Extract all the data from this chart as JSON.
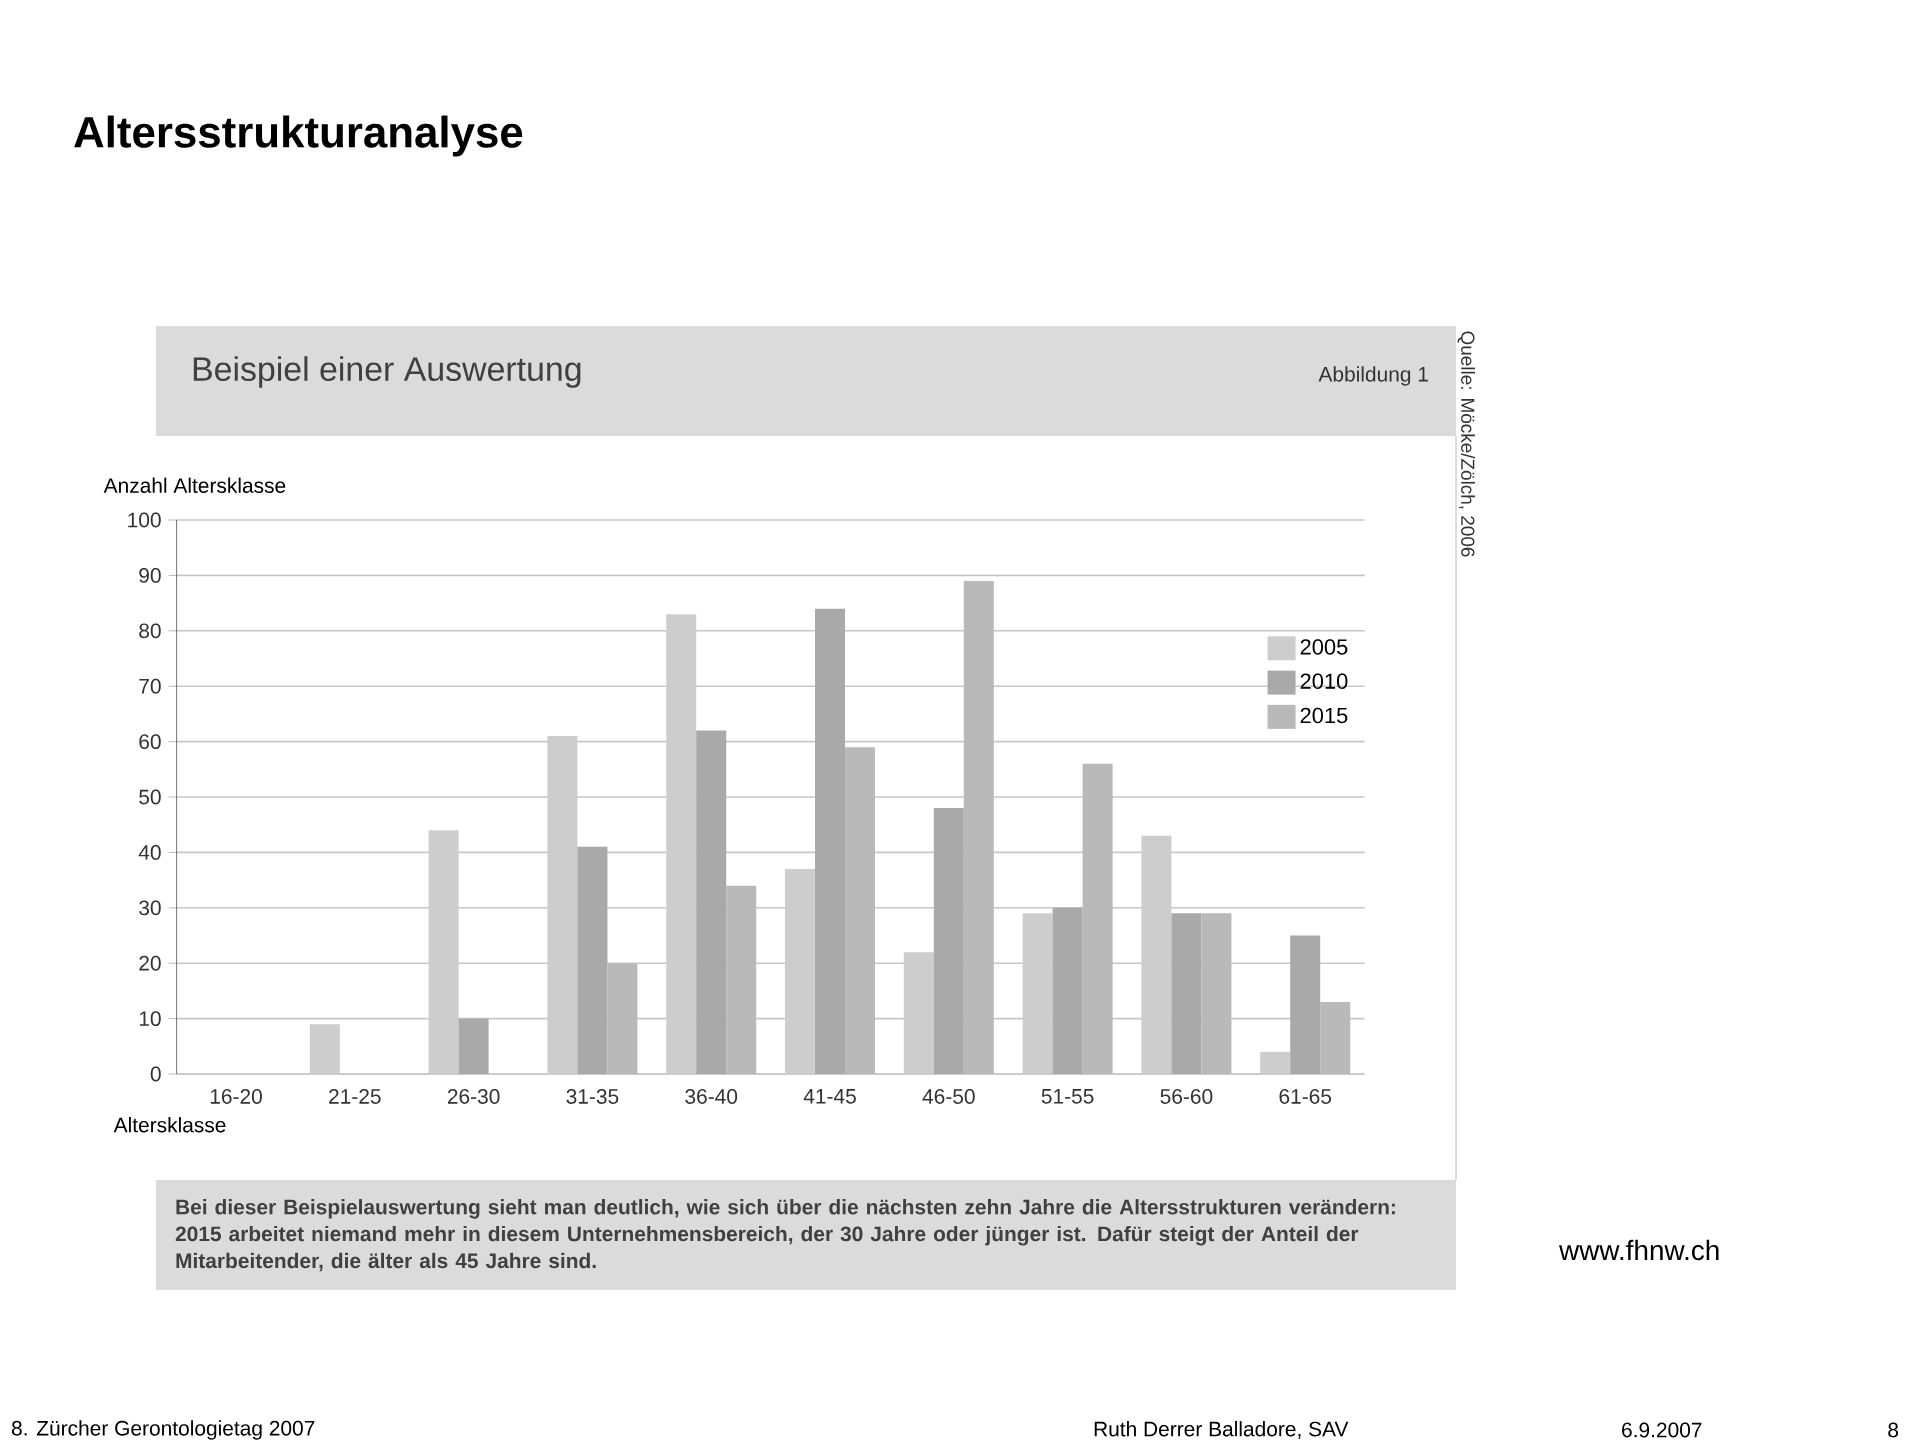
{
  "chart_data": {
    "type": "bar",
    "title": "Altersstrukturanalyse",
    "subtitle": "Beispiel einer Auswertung",
    "xlabel": "Altersklasse",
    "ylabel": "Anzahl Altersklasse",
    "categories": [
      "16-20",
      "21-25",
      "26-30",
      "31-35",
      "36-40",
      "41-45",
      "46-50",
      "51-55",
      "56-60",
      "61-65"
    ],
    "series": [
      {
        "name": "2005",
        "color": "#cdcdcd",
        "values": [
          0,
          9,
          44,
          61,
          83,
          37,
          22,
          29,
          43,
          4
        ]
      },
      {
        "name": "2010",
        "color": "#a9a9a9",
        "values": [
          0,
          0,
          10,
          41,
          62,
          84,
          48,
          30,
          29,
          25
        ]
      },
      {
        "name": "2015",
        "color": "#b9b9b9",
        "values": [
          0,
          0,
          0,
          20,
          34,
          59,
          89,
          56,
          29,
          13
        ]
      }
    ],
    "ylim": [
      0,
      100
    ],
    "yticks": [
      0,
      10,
      20,
      30,
      40,
      50,
      60,
      70,
      80,
      90,
      100
    ],
    "grid": "y",
    "legend": "top right",
    "annotations": [
      "Abbildung 1",
      "Quelle: Möcke/Zölch, 2006",
      "Bei dieser Beispielauswertung sieht man deutlich, wie sich über die nächsten zehn Jahre die Altersstrukturen verändern: 2015 arbeitet niemand mehr in diesem Unternehmensbereich, der 30 Jahre oder jünger ist. Dafür steigt der Anteil der Mitarbeitender, die älter als 45 Jahre sind.",
      "www.fhnw.ch",
      "8. Zürcher Gerontologietag 2007",
      "Ruth Derrer Balladore, SAV",
      "6.9.2007",
      "8"
    ]
  }
}
